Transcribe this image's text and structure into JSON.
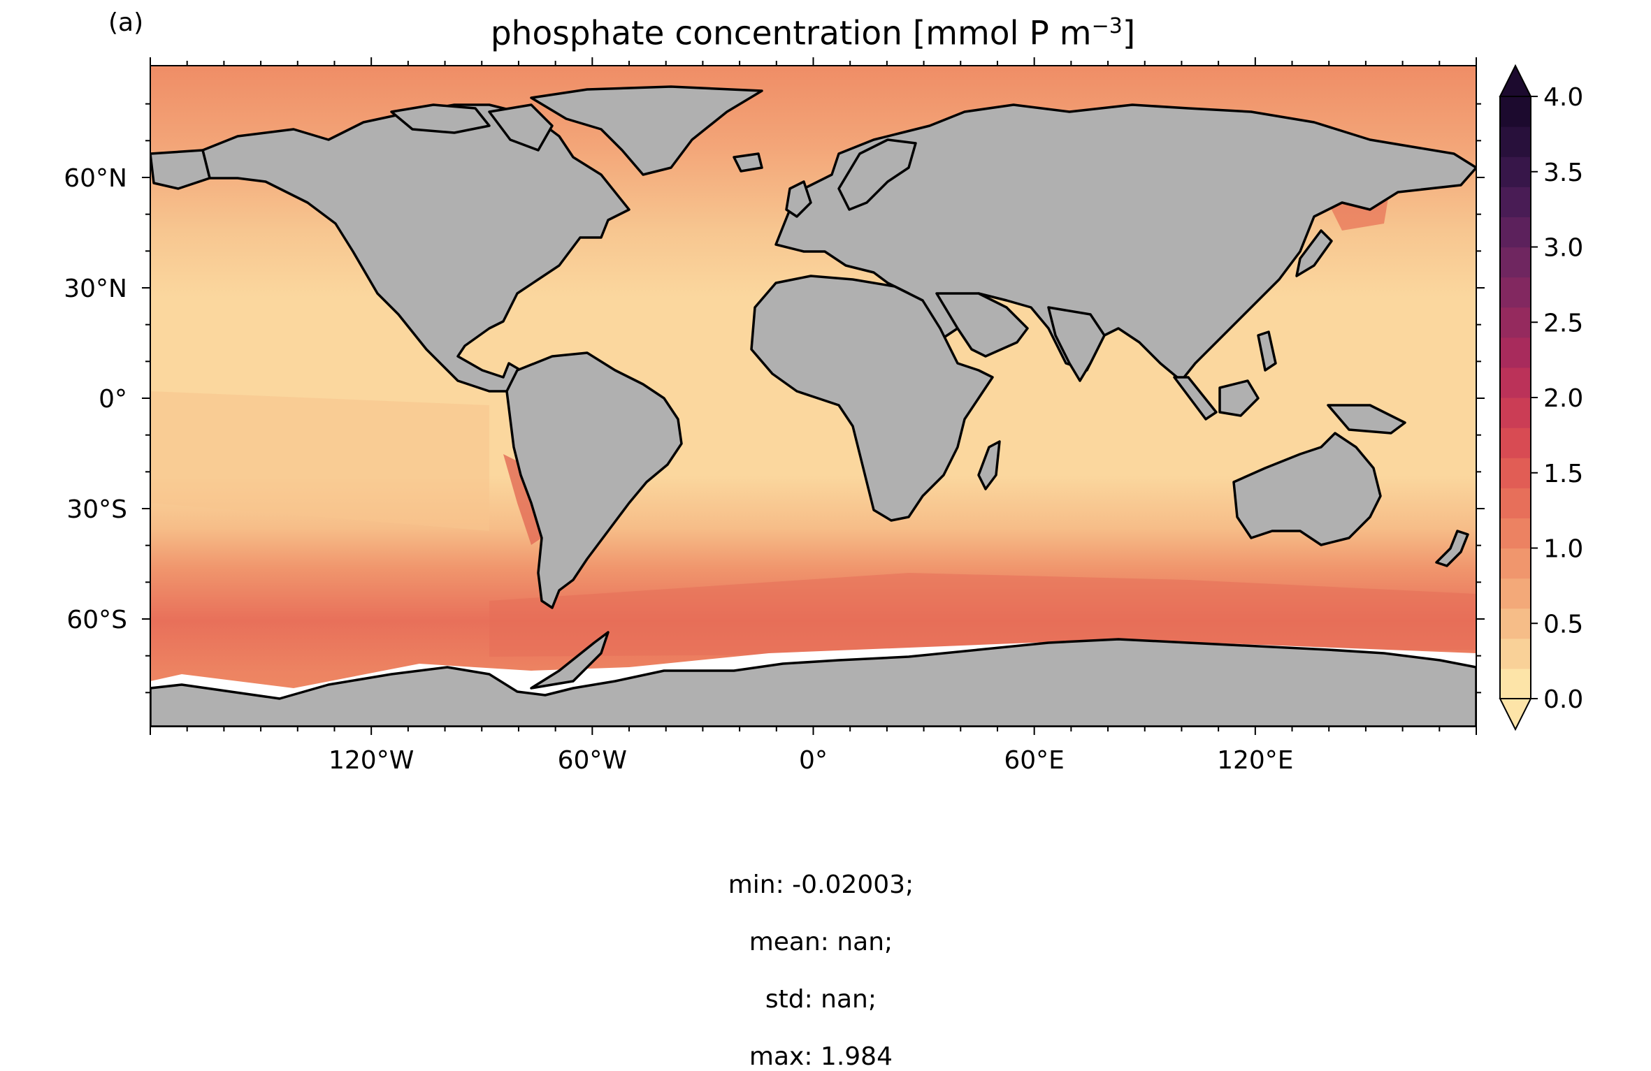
{
  "panel_label": "(a)",
  "title": "phosphate concentration [mmol P m",
  "title_sup": "−3",
  "title_end": "]",
  "y_ticks": [
    "60°N",
    "30°N",
    "0°",
    "30°S",
    "60°S"
  ],
  "x_ticks": [
    "120°W",
    "60°W",
    "0°",
    "60°E",
    "120°E"
  ],
  "colorbar": {
    "ticks": [
      "0.0",
      "0.5",
      "1.0",
      "1.5",
      "2.0",
      "2.5",
      "3.0",
      "3.5",
      "4.0"
    ],
    "levels": 20,
    "range": [
      0.0,
      4.0
    ],
    "extend": "both",
    "colormap": [
      "#fde4a8",
      "#f9d198",
      "#f6bd88",
      "#f3a979",
      "#f0966d",
      "#ec8262",
      "#e76f5a",
      "#e15d55",
      "#d84b53",
      "#cb3d55",
      "#bb3259",
      "#a82b5c",
      "#952a5e",
      "#822860",
      "#6f2660",
      "#5c215c",
      "#491c55",
      "#371649",
      "#28103b",
      "#1c0a2e"
    ]
  },
  "colors": {
    "land": "#b0b0b0",
    "no_data": "#ffffff",
    "coastline": "#000000"
  },
  "stats": {
    "min": "min: -0.02003;",
    "mean": "mean: nan;",
    "std": "std: nan;",
    "max": "max: 1.984"
  }
}
